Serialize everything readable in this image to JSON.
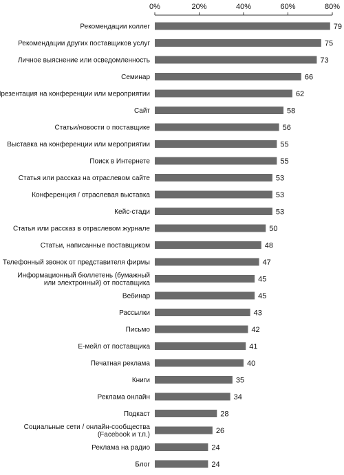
{
  "chart_data": {
    "type": "bar",
    "orientation": "horizontal",
    "x_ticks": [
      "0%",
      "20%",
      "40%",
      "60%",
      "80%"
    ],
    "xlim": [
      0,
      80
    ],
    "value_unit": "%",
    "grid": false,
    "bar_color": "#6b6b6b",
    "categories": [
      [
        "Рекомендации коллег"
      ],
      [
        "Рекомендации других поставщиков услуг"
      ],
      [
        "Личное выяснение или осведомленность"
      ],
      [
        "Семинар"
      ],
      [
        "Презентация на конференции или мероприятии"
      ],
      [
        "Сайт"
      ],
      [
        "Статьи/новости о поставщике"
      ],
      [
        "Выставка на конференции или мероприятии"
      ],
      [
        "Поиск в Интернете"
      ],
      [
        "Статья или рассказ на отраслевом сайте"
      ],
      [
        "Конференция / отраслевая выставка"
      ],
      [
        "Кейс-стади"
      ],
      [
        "Статья или рассказ в отраслевом журнале"
      ],
      [
        "Статьи, написанные поставщиком"
      ],
      [
        "Телефонный звонок от представителя фирмы"
      ],
      [
        "Информационный бюллетень (бумажный",
        "или электронный) от поставщика"
      ],
      [
        "Вебинар"
      ],
      [
        "Рассылки"
      ],
      [
        "Письмо"
      ],
      [
        "Е-мейл от поставщика"
      ],
      [
        "Печатная реклама"
      ],
      [
        "Книги"
      ],
      [
        "Реклама онлайн"
      ],
      [
        "Подкаст"
      ],
      [
        "Социальные сети / онлайн-сообщества",
        "(Facebook и т.п.)"
      ],
      [
        "Реклама на радио"
      ],
      [
        "Блог"
      ]
    ],
    "values": [
      79,
      75,
      73,
      66,
      62,
      58,
      56,
      55,
      55,
      53,
      53,
      53,
      50,
      48,
      47,
      45,
      45,
      43,
      42,
      41,
      40,
      35,
      34,
      28,
      26,
      24,
      24
    ],
    "data_labels": [
      "79",
      "75",
      "73",
      "66",
      "62",
      "58",
      "56",
      "55",
      "55",
      "53",
      "53",
      "53",
      "50",
      "48",
      "47",
      "45",
      "45",
      "43",
      "42",
      "41",
      "40",
      "35",
      "34",
      "28",
      "26",
      "24",
      "24"
    ]
  }
}
